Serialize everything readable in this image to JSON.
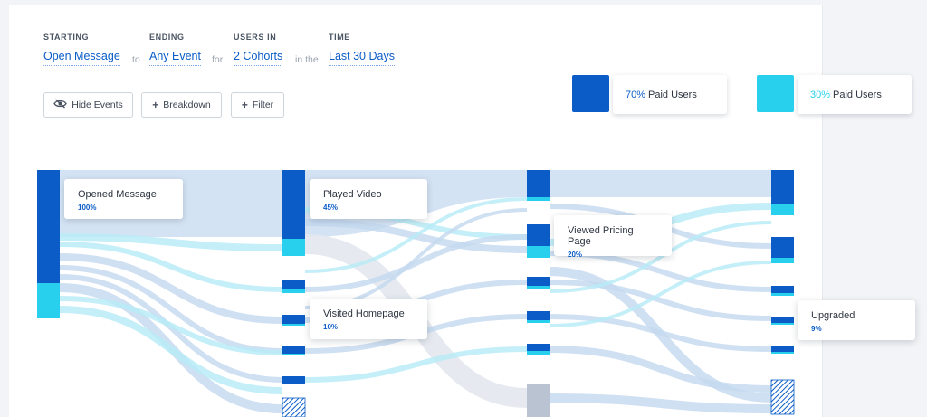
{
  "query": {
    "starting": {
      "label": "STARTING",
      "value": "Open Message"
    },
    "connector_to": "to",
    "ending": {
      "label": "ENDING",
      "value": "Any Event"
    },
    "connector_for": "for",
    "users_in": {
      "label": "USERS IN",
      "value": "2 Cohorts"
    },
    "connector_in_the": "in the",
    "time": {
      "label": "TIME",
      "value": "Last 30 Days"
    }
  },
  "toolbar": {
    "hide_events_label": "Hide Events",
    "breakdown_label": "Breakdown",
    "filter_label": "Filter"
  },
  "legend": [
    {
      "percent": "70%",
      "label": "Paid Users",
      "color": "#0b5cc7"
    },
    {
      "percent": "30%",
      "label": "Paid Users",
      "color": "#29d0ee"
    }
  ],
  "colors": {
    "dark": "#0b5cc7",
    "light": "#29d0ee",
    "other": "#b9c3d1",
    "band": "#c8dbf0"
  },
  "tooltips": {
    "opened_message": {
      "title": "Opened Message",
      "percent": "100%"
    },
    "played_video": {
      "title": "Played Video",
      "percent": "45%"
    },
    "viewed_pricing": {
      "title": "Viewed Pricing Page",
      "percent": "20%"
    },
    "visited_homepage": {
      "title": "Visited Homepage",
      "percent": "10%"
    },
    "upgraded": {
      "title": "Upgraded",
      "percent": "9%"
    }
  }
}
